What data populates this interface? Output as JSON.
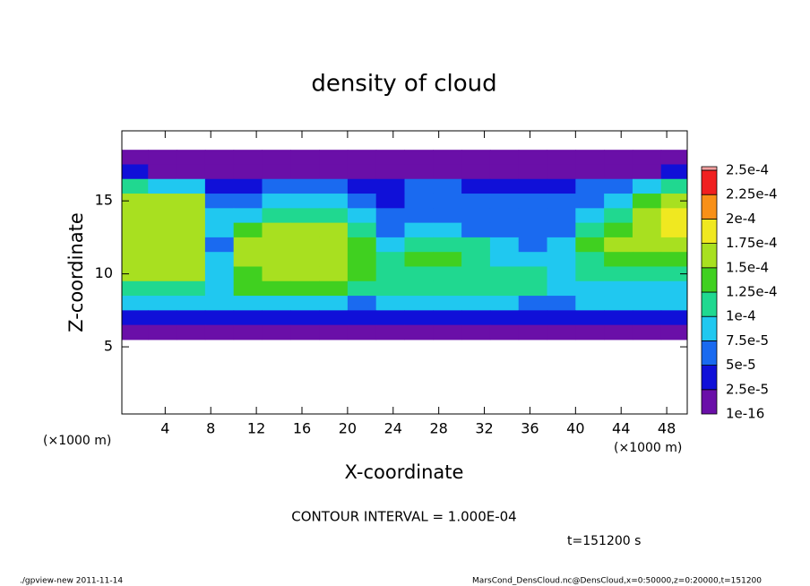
{
  "chart_data": {
    "type": "heatmap",
    "title": "density of cloud",
    "x_label": "X-coordinate",
    "y_label": "Z-coordinate",
    "x_unit": "(×1000 m)",
    "y_unit": "(×1000 m)",
    "contour_note": "CONTOUR INTERVAL = 1.000E-04",
    "time_note": "t=151200 s",
    "footer_left": "./gpview-new  2011-11-14",
    "footer_right": "MarsCond_DensCloud.nc@DensCloud,x=0:50000,z=0:20000,t=151200",
    "xlim": [
      0.2,
      49.8
    ],
    "ylim": [
      0.4,
      19.8
    ],
    "xticks": [
      4,
      8,
      12,
      16,
      20,
      24,
      28,
      32,
      36,
      40,
      44,
      48
    ],
    "yticks": [
      5,
      10,
      15
    ],
    "x": [
      1.25,
      3.75,
      6.25,
      8.75,
      11.25,
      13.75,
      16.25,
      18.75,
      21.25,
      23.75,
      26.25,
      28.75,
      31.25,
      33.75,
      36.25,
      38.75,
      41.25,
      43.75,
      46.25,
      48.75
    ],
    "z": [
      18,
      17,
      16,
      15,
      14,
      13,
      12,
      11,
      10,
      9,
      8,
      7,
      6
    ],
    "values": [
      [
        1e-05,
        1e-05,
        1e-05,
        1e-05,
        1e-05,
        1e-05,
        1e-05,
        1e-05,
        1e-05,
        1e-05,
        1e-05,
        1e-05,
        1e-05,
        1e-05,
        1e-05,
        1e-05,
        1e-05,
        1e-05,
        1e-05,
        1e-05
      ],
      [
        3e-05,
        2e-05,
        2e-05,
        1e-05,
        2e-05,
        2e-05,
        2e-05,
        2e-05,
        2e-05,
        1e-05,
        2e-05,
        2e-05,
        2e-05,
        2e-05,
        2e-05,
        2e-05,
        2e-05,
        2e-05,
        2e-05,
        3e-05
      ],
      [
        0.0001,
        8e-05,
        8e-05,
        3e-05,
        4e-05,
        5e-05,
        5e-05,
        5e-05,
        4e-05,
        3e-05,
        5e-05,
        5e-05,
        4e-05,
        4e-05,
        4e-05,
        4e-05,
        5e-05,
        5e-05,
        8e-05,
        0.00011
      ],
      [
        0.00015,
        0.00016,
        0.00015,
        6e-05,
        6e-05,
        8e-05,
        8e-05,
        8e-05,
        6e-05,
        4e-05,
        6e-05,
        6e-05,
        5e-05,
        5e-05,
        5e-05,
        5e-05,
        7e-05,
        9e-05,
        0.00013,
        0.00017
      ],
      [
        0.00017,
        0.00017,
        0.00016,
        9e-05,
        8e-05,
        0.00011,
        0.00012,
        0.00011,
        8e-05,
        5e-05,
        7e-05,
        6e-05,
        6e-05,
        5e-05,
        5e-05,
        6e-05,
        9e-05,
        0.00012,
        0.00015,
        0.00019
      ],
      [
        0.00017,
        0.00017,
        0.00016,
        8e-05,
        0.00014,
        0.00016,
        0.00016,
        0.00016,
        0.00012,
        7e-05,
        8e-05,
        8e-05,
        7e-05,
        6e-05,
        6e-05,
        7e-05,
        0.00012,
        0.00014,
        0.00016,
        0.00018
      ],
      [
        0.00017,
        0.00017,
        0.00016,
        7e-05,
        0.00016,
        0.00016,
        0.00016,
        0.00016,
        0.00014,
        9e-05,
        0.00011,
        0.00012,
        0.0001,
        8e-05,
        7e-05,
        8e-05,
        0.00014,
        0.00015,
        0.00015,
        0.00016
      ],
      [
        0.00016,
        0.00016,
        0.00015,
        8e-05,
        0.00015,
        0.00016,
        0.00016,
        0.00016,
        0.00014,
        0.00011,
        0.00013,
        0.00013,
        0.00012,
        9e-05,
        9e-05,
        8e-05,
        0.00012,
        0.00013,
        0.00013,
        0.00013
      ],
      [
        0.00015,
        0.00015,
        0.00015,
        8e-05,
        0.00014,
        0.00015,
        0.00015,
        0.00015,
        0.00013,
        0.00011,
        0.00012,
        0.00012,
        0.00012,
        0.0001,
        0.00011,
        8e-05,
        0.0001,
        0.00011,
        0.00011,
        0.00011
      ],
      [
        0.00012,
        0.00012,
        0.00012,
        9e-05,
        0.00013,
        0.00013,
        0.00013,
        0.00013,
        0.00011,
        0.00011,
        0.00011,
        0.00011,
        0.00011,
        0.0001,
        0.0001,
        8e-05,
        9e-05,
        9e-05,
        9e-05,
        9e-05
      ],
      [
        8e-05,
        8e-05,
        8e-05,
        8e-05,
        8e-05,
        8e-05,
        8e-05,
        8e-05,
        7e-05,
        8e-05,
        8e-05,
        8e-05,
        8e-05,
        8e-05,
        7e-05,
        6e-05,
        8e-05,
        8e-05,
        8e-05,
        8e-05
      ],
      [
        4e-05,
        4e-05,
        4e-05,
        4e-05,
        4e-05,
        4e-05,
        4e-05,
        4e-05,
        4e-05,
        4e-05,
        4e-05,
        4e-05,
        4e-05,
        4e-05,
        3e-05,
        3e-05,
        4e-05,
        4e-05,
        4e-05,
        4e-05
      ],
      [
        1e-05,
        1e-05,
        1e-05,
        1e-05,
        1e-05,
        1e-05,
        1e-05,
        1e-05,
        1e-05,
        1e-05,
        1e-05,
        1e-05,
        1e-05,
        1e-05,
        1e-05,
        1e-05,
        1e-05,
        1e-05,
        1e-05,
        1e-05
      ]
    ],
    "levels": [
      {
        "value": 1e-16,
        "label": "1e-16"
      },
      {
        "value": 2.5e-05,
        "label": "2.5e-5"
      },
      {
        "value": 5e-05,
        "label": "5e-5"
      },
      {
        "value": 7.5e-05,
        "label": "7.5e-5"
      },
      {
        "value": 0.0001,
        "label": "1e-4"
      },
      {
        "value": 0.000125,
        "label": "1.25e-4"
      },
      {
        "value": 0.00015,
        "label": "1.5e-4"
      },
      {
        "value": 0.000175,
        "label": "1.75e-4"
      },
      {
        "value": 0.0002,
        "label": "2e-4"
      },
      {
        "value": 0.000225,
        "label": "2.25e-4"
      },
      {
        "value": 0.00025,
        "label": "2.5e-4"
      }
    ],
    "colors": [
      "#6a0fa8",
      "#1010d8",
      "#1a6af0",
      "#20c8f0",
      "#20d890",
      "#40d020",
      "#a8e020",
      "#f0e820",
      "#f89018",
      "#f02020",
      "#f8a0a0"
    ]
  }
}
